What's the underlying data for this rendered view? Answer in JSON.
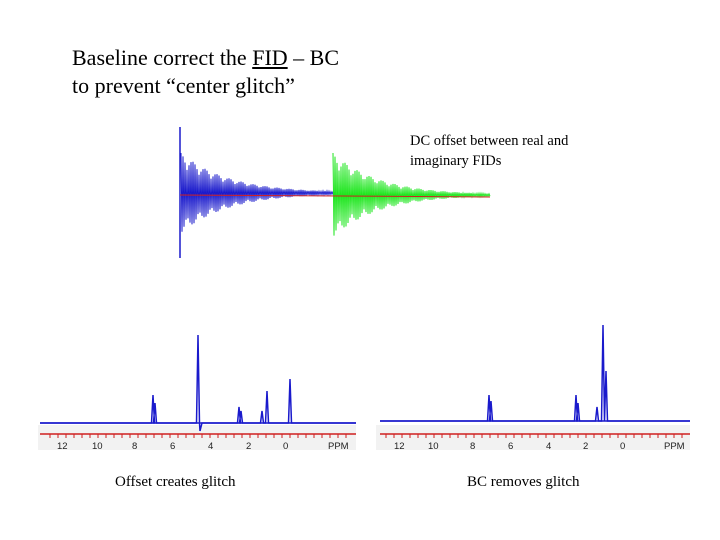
{
  "title": {
    "line1_pre": "Baseline correct the ",
    "line1_link": "FID",
    "line1_post": " – BC",
    "line2": "to prevent “center glitch”"
  },
  "annotation": "DC offset between real and imaginary FIDs",
  "spectra": {
    "left": {
      "caption": "Offset creates glitch",
      "axis_ticks": [
        "12",
        "10",
        "8",
        "6",
        "4",
        "2",
        "0",
        "PPM"
      ]
    },
    "right": {
      "caption": "BC removes glitch",
      "axis_ticks": [
        "12",
        "10",
        "8",
        "6",
        "4",
        "2",
        "0",
        "PPM"
      ]
    }
  },
  "colors": {
    "real_fid": "#1a1acc",
    "imag_fid": "#1ee61e",
    "offset_line": "#d02020",
    "spectrum": "#1a1acc",
    "baseline_red": "#d02020"
  }
}
